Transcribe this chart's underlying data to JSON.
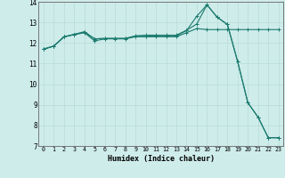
{
  "xlabel": "Humidex (Indice chaleur)",
  "background_color": "#ceecea",
  "grid_color": "#b8dbd8",
  "line_color": "#1a7a6e",
  "xlim": [
    -0.5,
    23.5
  ],
  "ylim": [
    7,
    14
  ],
  "xticks": [
    0,
    1,
    2,
    3,
    4,
    5,
    6,
    7,
    8,
    9,
    10,
    11,
    12,
    13,
    14,
    15,
    16,
    17,
    18,
    19,
    20,
    21,
    22,
    23
  ],
  "yticks": [
    7,
    8,
    9,
    10,
    11,
    12,
    13,
    14
  ],
  "series1_x": [
    0,
    1,
    2,
    3,
    4,
    5,
    6,
    7,
    8,
    9,
    10,
    11,
    12,
    13,
    14,
    15,
    16,
    17,
    18,
    19,
    20,
    21,
    22,
    23
  ],
  "series1_y": [
    11.7,
    11.85,
    12.3,
    12.4,
    12.5,
    12.1,
    12.2,
    12.2,
    12.2,
    12.3,
    12.3,
    12.3,
    12.3,
    12.3,
    12.5,
    12.7,
    12.65,
    12.65,
    12.65,
    12.65,
    12.65,
    12.65,
    12.65,
    12.65
  ],
  "series2_x": [
    0,
    1,
    2,
    3,
    4,
    5,
    6,
    7,
    8,
    9,
    10,
    11,
    12,
    13,
    14,
    15,
    16,
    17,
    18,
    19,
    20,
    21,
    22,
    23
  ],
  "series2_y": [
    11.7,
    11.85,
    12.3,
    12.42,
    12.52,
    12.2,
    12.22,
    12.22,
    12.22,
    12.32,
    12.32,
    12.35,
    12.35,
    12.35,
    12.6,
    13.3,
    13.85,
    13.25,
    12.9,
    11.1,
    9.1,
    8.4,
    7.4,
    7.4
  ],
  "series3_x": [
    0,
    1,
    2,
    3,
    4,
    5,
    6,
    7,
    8,
    9,
    10,
    11,
    12,
    13,
    14,
    15,
    16,
    17,
    18,
    19,
    20,
    21,
    22,
    23
  ],
  "series3_y": [
    11.7,
    11.85,
    12.3,
    12.42,
    12.55,
    12.2,
    12.22,
    12.22,
    12.22,
    12.35,
    12.38,
    12.38,
    12.38,
    12.38,
    12.62,
    12.92,
    13.85,
    13.25,
    12.9,
    11.1,
    9.1,
    8.4,
    7.4,
    7.4
  ]
}
